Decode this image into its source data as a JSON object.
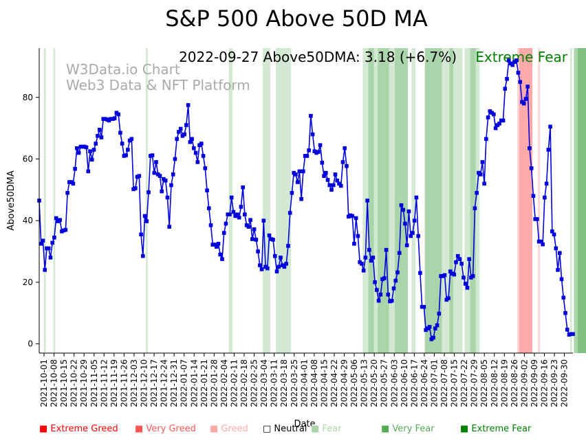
{
  "chart_data": {
    "type": "line",
    "title": "S&P 500 Above 50D MA",
    "subtitle": "2022-09-27 Above50DMA: 3.18 (+6.7%)",
    "status": "Extreme Fear",
    "status_color": "#008000",
    "watermark": [
      "W3Data.io Chart",
      "Web3 Data & NFT Platform"
    ],
    "xlabel": "Date",
    "ylabel": "Above50DMA",
    "ylim": [
      -3,
      96
    ],
    "yticks": [
      0,
      20,
      40,
      60,
      80
    ],
    "line_color": "#0000dd",
    "xticks": [
      "2021-10-01",
      "2021-10-08",
      "2021-10-15",
      "2021-10-22",
      "2021-10-29",
      "2021-11-05",
      "2021-11-12",
      "2021-11-19",
      "2021-11-26",
      "2021-12-03",
      "2021-12-10",
      "2021-12-17",
      "2021-12-24",
      "2021-12-31",
      "2022-01-07",
      "2022-01-14",
      "2022-01-21",
      "2022-01-28",
      "2022-02-04",
      "2022-02-11",
      "2022-02-18",
      "2022-02-25",
      "2022-03-04",
      "2022-03-11",
      "2022-03-18",
      "2022-03-25",
      "2022-04-01",
      "2022-04-08",
      "2022-04-15",
      "2022-04-22",
      "2022-04-29",
      "2022-05-06",
      "2022-05-13",
      "2022-05-20",
      "2022-05-27",
      "2022-06-03",
      "2022-06-10",
      "2022-06-17",
      "2022-06-24",
      "2022-07-01",
      "2022-07-08",
      "2022-07-15",
      "2022-07-22",
      "2022-07-29",
      "2022-08-05",
      "2022-08-12",
      "2022-08-19",
      "2022-08-26",
      "2022-09-02",
      "2022-09-09",
      "2022-09-16",
      "2022-09-23",
      "2022-09-30"
    ],
    "values": [
      46.5,
      32.5,
      33.5,
      24,
      31,
      31,
      28,
      32.8,
      34.5,
      40.8,
      39.8,
      40.2,
      36.5,
      36.8,
      37,
      49,
      52.5,
      52.5,
      52,
      56.8,
      63.5,
      62,
      64,
      64,
      64,
      63.8,
      56,
      62.5,
      59.8,
      63,
      65,
      67.5,
      69.5,
      67,
      73,
      73,
      72.8,
      72.5,
      73,
      73,
      73.2,
      75,
      74.5,
      68.5,
      65,
      61,
      61.2,
      63,
      66,
      66.5,
      50.2,
      50.5,
      54.2,
      54.5,
      35.5,
      28.5,
      41.5,
      39.8,
      49.2,
      61,
      61.2,
      55.5,
      59,
      55,
      54.5,
      49.5,
      53.5,
      53,
      47.5,
      38,
      51.5,
      55,
      60,
      66.5,
      68.8,
      69.8,
      67.5,
      68,
      71,
      77.5,
      65.5,
      66.5,
      63.5,
      62,
      59,
      64.5,
      65,
      61,
      57,
      49.8,
      44,
      38.5,
      32.2,
      32.2,
      31.5,
      32.5,
      29,
      27.5,
      36,
      39,
      42,
      42,
      47.5,
      42.8,
      41.5,
      42,
      41,
      44.5,
      50.8,
      42,
      38.5,
      38,
      40.2,
      34,
      37.2,
      33.8,
      30,
      25.5,
      24.2,
      40,
      25,
      24.5,
      35.2,
      34,
      33.8,
      28.5,
      23.5,
      25,
      28,
      25.5,
      25,
      26,
      31.8,
      42.5,
      49,
      55.5,
      55,
      52.5,
      56,
      47,
      56,
      61,
      61,
      62.8,
      74,
      68,
      62.5,
      62,
      62.3,
      64.5,
      58.8,
      54.5,
      55.5,
      53.2,
      51.5,
      50,
      51.5,
      55,
      53,
      52,
      51.3,
      59,
      63.5,
      57.7,
      41.3,
      41.7,
      41.5,
      32.5,
      40.8,
      35,
      26.5,
      26,
      23.8,
      28,
      46.5,
      30.5,
      27,
      28,
      20,
      17.5,
      14,
      16,
      21,
      21.3,
      30.5,
      16,
      13.8,
      14,
      18,
      20.5,
      23.2,
      29.5,
      45,
      43.5,
      39,
      32,
      43,
      35,
      36,
      40,
      47.5,
      35,
      23,
      12,
      12,
      4.5,
      5,
      5.5,
      1.5,
      2,
      5,
      6,
      9.8,
      22,
      22,
      22.3,
      14.3,
      14.8,
      23.5,
      22.8,
      22.5,
      26.5,
      28.5,
      27.5,
      26,
      21.5,
      19.5,
      18.2,
      27.5,
      21.5,
      22,
      44,
      49,
      55.5,
      55,
      59,
      52,
      66.5,
      73.5,
      75.5,
      75,
      74.5,
      70,
      71,
      71.5,
      72.5,
      72.5,
      82.8,
      86,
      92,
      91,
      90.5,
      91.5,
      92,
      88,
      85,
      78.5,
      78,
      79.5,
      83.5,
      63.5,
      57,
      48,
      40.5,
      40.5,
      33.2,
      33.2,
      32.3,
      47.5,
      52,
      63,
      70.5,
      36.5,
      35.5,
      31,
      24,
      29.5,
      21,
      15,
      10,
      4.6,
      2.98,
      3.18,
      3.18
    ],
    "zones": [
      {
        "start": 3,
        "end": 4,
        "level": "Fear"
      },
      {
        "start": 8,
        "end": 9,
        "level": "Fear"
      },
      {
        "start": 57,
        "end": 58,
        "level": "Fear"
      },
      {
        "start": 101,
        "end": 103,
        "level": "Fear"
      },
      {
        "start": 119,
        "end": 123,
        "level": "Fear"
      },
      {
        "start": 126,
        "end": 134,
        "level": "Fear"
      },
      {
        "start": 172,
        "end": 175,
        "level": "Fear"
      },
      {
        "start": 175,
        "end": 178,
        "level": "Very Fear"
      },
      {
        "start": 178,
        "end": 180,
        "level": "Fear"
      },
      {
        "start": 180,
        "end": 186,
        "level": "Very Fear"
      },
      {
        "start": 186,
        "end": 189,
        "level": "Fear"
      },
      {
        "start": 189,
        "end": 196,
        "level": "Very Fear"
      },
      {
        "start": 198,
        "end": 200,
        "level": "Fear"
      },
      {
        "start": 205,
        "end": 214,
        "level": "Very Fear"
      },
      {
        "start": 214,
        "end": 218,
        "level": "Fear"
      },
      {
        "start": 218,
        "end": 220,
        "level": "Very Fear"
      },
      {
        "start": 220,
        "end": 225,
        "level": "Fear"
      },
      {
        "start": 226,
        "end": 229,
        "level": "Fear"
      },
      {
        "start": 229,
        "end": 232,
        "level": "Very Fear"
      },
      {
        "start": 232,
        "end": 234,
        "level": "Fear"
      },
      {
        "start": 254,
        "end": 255,
        "level": "Greed"
      },
      {
        "start": 255,
        "end": 262,
        "level": "Very Greed"
      },
      {
        "start": 265,
        "end": 266,
        "level": "Greed"
      },
      {
        "start": 282,
        "end": 283,
        "level": "Fear"
      },
      {
        "start": 284,
        "end": 286,
        "level": "Very Fear"
      },
      {
        "start": 286,
        "end": 291,
        "level": "Extreme Fear"
      }
    ],
    "legend": [
      {
        "label": "Extreme Greed",
        "color": "#ff0000"
      },
      {
        "label": "Very Greed",
        "color": "#ff5555"
      },
      {
        "label": "Greed",
        "color": "#ffaaaa"
      },
      {
        "label": "Neutral",
        "color": "#000000"
      },
      {
        "label": "Fear",
        "color": "#aad4aa"
      },
      {
        "label": "Very Fear",
        "color": "#55aa55"
      },
      {
        "label": "Extreme Fear",
        "color": "#008000"
      }
    ],
    "legend_position": "bottom"
  }
}
